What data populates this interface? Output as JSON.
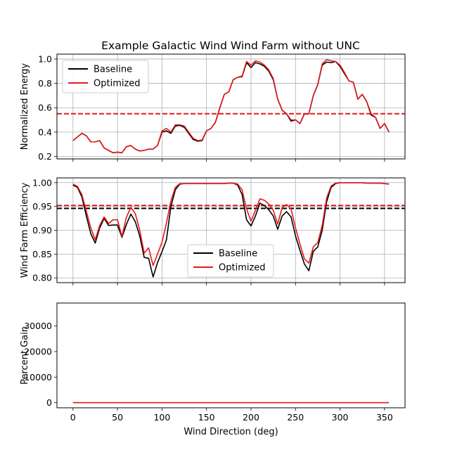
{
  "figure": {
    "title": "Example Galactic Wind Wind Farm without UNC"
  },
  "chart_data": [
    {
      "type": "line",
      "ylabel": "Normalized Energy",
      "xlim": [
        -18,
        373
      ],
      "ylim": [
        0.18,
        1.04
      ],
      "xticks": [
        0,
        50,
        100,
        150,
        200,
        250,
        300,
        350
      ],
      "yticks": [
        0.2,
        0.4,
        0.6,
        0.8,
        1.0
      ],
      "ytick_labels": [
        "0.2",
        "0.4",
        "0.6",
        "0.8",
        "1.0"
      ],
      "grid": true,
      "legend_position": "upper-left",
      "x": [
        0,
        5,
        10,
        15,
        20,
        25,
        30,
        35,
        40,
        45,
        50,
        55,
        60,
        65,
        70,
        75,
        80,
        85,
        90,
        95,
        100,
        105,
        110,
        115,
        120,
        125,
        130,
        135,
        140,
        145,
        150,
        155,
        160,
        165,
        170,
        175,
        180,
        185,
        190,
        195,
        200,
        205,
        210,
        215,
        220,
        225,
        230,
        235,
        240,
        245,
        250,
        255,
        260,
        265,
        270,
        275,
        280,
        285,
        290,
        295,
        300,
        305,
        310,
        315,
        320,
        325,
        330,
        335,
        340,
        345,
        350,
        355
      ],
      "series": [
        {
          "name": "Baseline",
          "color": "#000000",
          "values": [
            0.33,
            0.36,
            0.39,
            0.37,
            0.32,
            0.32,
            0.33,
            0.27,
            0.25,
            0.23,
            0.235,
            0.23,
            0.28,
            0.29,
            0.26,
            0.245,
            0.25,
            0.26,
            0.26,
            0.29,
            0.4,
            0.41,
            0.39,
            0.45,
            0.455,
            0.44,
            0.39,
            0.34,
            0.325,
            0.33,
            0.41,
            0.43,
            0.48,
            0.6,
            0.71,
            0.73,
            0.83,
            0.85,
            0.855,
            0.97,
            0.93,
            0.97,
            0.96,
            0.94,
            0.9,
            0.83,
            0.67,
            0.58,
            0.55,
            0.49,
            0.5,
            0.47,
            0.55,
            0.55,
            0.7,
            0.79,
            0.95,
            0.975,
            0.97,
            0.98,
            0.94,
            0.88,
            0.82,
            0.81,
            0.67,
            0.71,
            0.65,
            0.54,
            0.52,
            0.43,
            0.47,
            0.4
          ]
        },
        {
          "name": "Optimized",
          "color": "#e41a1c",
          "values": [
            0.33,
            0.36,
            0.39,
            0.37,
            0.32,
            0.32,
            0.33,
            0.27,
            0.25,
            0.23,
            0.235,
            0.23,
            0.28,
            0.29,
            0.26,
            0.245,
            0.25,
            0.26,
            0.26,
            0.29,
            0.41,
            0.43,
            0.4,
            0.46,
            0.46,
            0.45,
            0.4,
            0.35,
            0.33,
            0.335,
            0.41,
            0.43,
            0.48,
            0.6,
            0.71,
            0.73,
            0.83,
            0.85,
            0.86,
            0.98,
            0.95,
            0.985,
            0.975,
            0.95,
            0.91,
            0.84,
            0.67,
            0.58,
            0.55,
            0.5,
            0.5,
            0.47,
            0.55,
            0.55,
            0.7,
            0.79,
            0.96,
            0.995,
            0.985,
            0.98,
            0.95,
            0.89,
            0.82,
            0.81,
            0.67,
            0.71,
            0.65,
            0.55,
            0.52,
            0.43,
            0.47,
            0.4
          ]
        }
      ],
      "hlines": [
        {
          "name": "Optimized",
          "y": 0.551,
          "color": "#e41a1c",
          "dashed": true
        }
      ]
    },
    {
      "type": "line",
      "ylabel": "Wind Farm Efficiency",
      "xlim": [
        -18,
        373
      ],
      "ylim": [
        0.79,
        1.01
      ],
      "xticks": [
        0,
        50,
        100,
        150,
        200,
        250,
        300,
        350
      ],
      "yticks": [
        0.8,
        0.85,
        0.9,
        0.95,
        1.0
      ],
      "ytick_labels": [
        "0.80",
        "0.85",
        "0.90",
        "0.95",
        "1.00"
      ],
      "grid": true,
      "legend_position": "lower-center",
      "x": [
        0,
        5,
        10,
        15,
        20,
        25,
        30,
        35,
        40,
        45,
        50,
        55,
        60,
        65,
        70,
        75,
        80,
        85,
        90,
        95,
        100,
        105,
        110,
        115,
        120,
        125,
        130,
        135,
        140,
        145,
        150,
        155,
        160,
        165,
        170,
        175,
        180,
        185,
        190,
        195,
        200,
        205,
        210,
        215,
        220,
        225,
        230,
        235,
        240,
        245,
        250,
        255,
        260,
        265,
        270,
        275,
        280,
        285,
        290,
        295,
        300,
        305,
        310,
        315,
        320,
        325,
        330,
        335,
        340,
        345,
        350,
        355
      ],
      "series": [
        {
          "name": "Baseline",
          "color": "#000000",
          "values": [
            0.995,
            0.99,
            0.97,
            0.93,
            0.893,
            0.873,
            0.905,
            0.925,
            0.91,
            0.911,
            0.911,
            0.885,
            0.912,
            0.934,
            0.918,
            0.888,
            0.843,
            0.841,
            0.802,
            0.832,
            0.855,
            0.88,
            0.95,
            0.985,
            0.997,
            0.998,
            0.998,
            0.998,
            0.998,
            0.998,
            0.998,
            0.998,
            0.998,
            0.998,
            0.998,
            0.999,
            0.999,
            0.995,
            0.975,
            0.922,
            0.909,
            0.93,
            0.957,
            0.952,
            0.943,
            0.93,
            0.902,
            0.93,
            0.939,
            0.928,
            0.888,
            0.858,
            0.829,
            0.815,
            0.856,
            0.865,
            0.9,
            0.96,
            0.99,
            0.998,
            1.0,
            1.0,
            1.0,
            1.0,
            1.0,
            1.0,
            0.999,
            0.999,
            0.999,
            0.999,
            0.998,
            0.997
          ]
        },
        {
          "name": "Optimized",
          "color": "#e41a1c",
          "values": [
            0.997,
            0.992,
            0.975,
            0.94,
            0.905,
            0.88,
            0.91,
            0.928,
            0.914,
            0.922,
            0.922,
            0.887,
            0.927,
            0.948,
            0.935,
            0.9,
            0.852,
            0.863,
            0.826,
            0.85,
            0.875,
            0.915,
            0.962,
            0.99,
            0.998,
            0.998,
            0.998,
            0.998,
            0.998,
            0.998,
            0.998,
            0.998,
            0.998,
            0.998,
            0.998,
            0.999,
            0.999,
            0.997,
            0.985,
            0.945,
            0.919,
            0.942,
            0.966,
            0.963,
            0.955,
            0.942,
            0.913,
            0.948,
            0.954,
            0.945,
            0.905,
            0.871,
            0.84,
            0.831,
            0.865,
            0.874,
            0.91,
            0.968,
            0.993,
            0.999,
            1.0,
            1.0,
            1.0,
            1.0,
            1.0,
            1.0,
            0.999,
            0.999,
            0.999,
            0.999,
            0.998,
            0.997
          ]
        }
      ],
      "hlines": [
        {
          "name": "Baseline",
          "y": 0.946,
          "color": "#000000",
          "dashed": true
        },
        {
          "name": "Optimized",
          "y": 0.952,
          "color": "#e41a1c",
          "dashed": true
        }
      ]
    },
    {
      "type": "line",
      "ylabel": "Percent Gain",
      "xlabel": "Wind Direction (deg)",
      "xlim": [
        -18,
        373
      ],
      "ylim": [
        -2000,
        39000
      ],
      "xticks": [
        0,
        50,
        100,
        150,
        200,
        250,
        300,
        350
      ],
      "yticks": [
        0,
        10000,
        20000,
        30000
      ],
      "ytick_labels": [
        "0",
        "10000",
        "20000",
        "30000"
      ],
      "grid": false,
      "x": [
        0,
        355
      ],
      "series": [
        {
          "color": "#e41a1c",
          "values": [
            0,
            0
          ]
        }
      ],
      "hlines": []
    }
  ]
}
